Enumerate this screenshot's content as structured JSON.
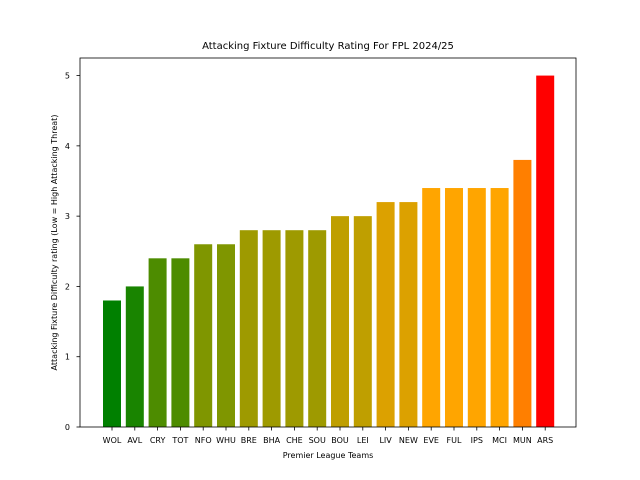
{
  "chart_data": {
    "type": "bar",
    "title": "Attacking Fixture Difficulty Rating For FPL 2024/25",
    "xlabel": "Premier League Teams",
    "ylabel": "Attacking Fixture Difficulty rating (Low = High Attacking Threat)",
    "ylim": [
      0,
      5.25
    ],
    "yticks": [
      0,
      1,
      2,
      3,
      4,
      5
    ],
    "grid": false,
    "categories": [
      "WOL",
      "AVL",
      "CRY",
      "TOT",
      "NFO",
      "WHU",
      "BRE",
      "BHA",
      "CHE",
      "SOU",
      "BOU",
      "LEI",
      "LIV",
      "NEW",
      "EVE",
      "FUL",
      "IPS",
      "MCI",
      "MUN",
      "ARS"
    ],
    "values": [
      1.8,
      2.0,
      2.4,
      2.4,
      2.6,
      2.6,
      2.8,
      2.8,
      2.8,
      2.8,
      3.0,
      3.0,
      3.2,
      3.2,
      3.4,
      3.4,
      3.4,
      3.4,
      3.8,
      5.0
    ],
    "colors": [
      "#008000",
      "#198400",
      "#4d8c00",
      "#4d8c00",
      "#7f9600",
      "#7f9600",
      "#9e9a00",
      "#9e9a00",
      "#9e9a00",
      "#9e9a00",
      "#bf9f00",
      "#bf9f00",
      "#dca100",
      "#dca100",
      "#ffa500",
      "#ffa500",
      "#ffa500",
      "#ffa500",
      "#ff7f00",
      "#ff0000"
    ]
  }
}
